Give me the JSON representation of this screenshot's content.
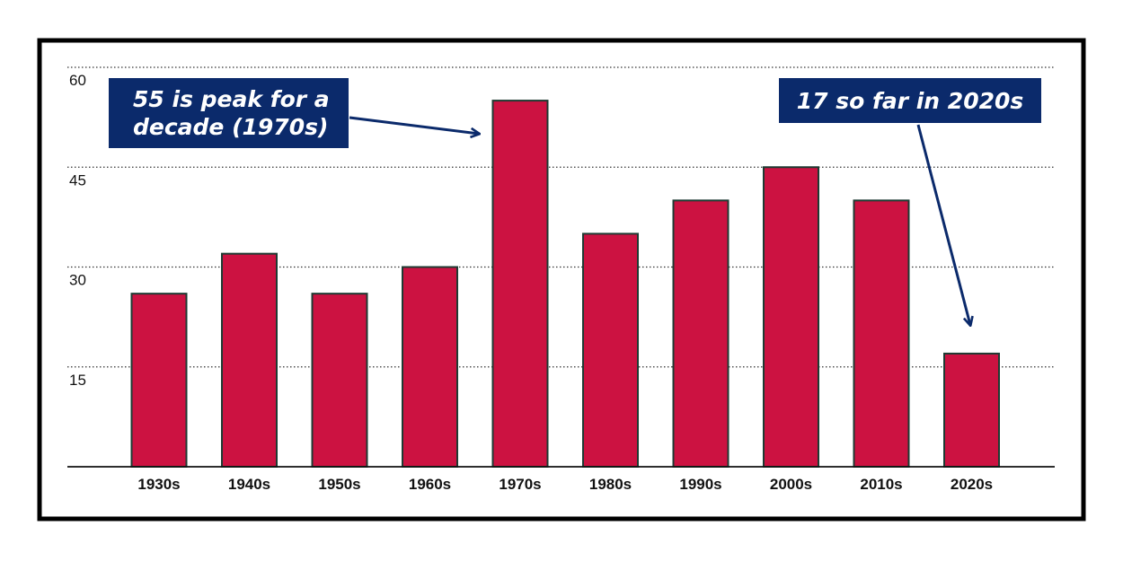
{
  "chart_data": {
    "type": "bar",
    "title": "",
    "xlabel": "",
    "ylabel": "",
    "categories": [
      "1930s",
      "1940s",
      "1950s",
      "1960s",
      "1970s",
      "1980s",
      "1990s",
      "2000s",
      "2010s",
      "2020s"
    ],
    "values": [
      26,
      32,
      26,
      30,
      55,
      35,
      40,
      45,
      40,
      17
    ],
    "ylim": [
      0,
      60
    ],
    "yticks": [
      15,
      30,
      45,
      60
    ],
    "grid": true,
    "legend": "none",
    "colors": {
      "bar": "#cc1241",
      "bar_edge": "#1e3a32",
      "annotation_box": "#0b2a6b",
      "arrow": "#0b2a6b",
      "frame": "#000000"
    },
    "annotations": [
      {
        "lines": [
          "55 is peak for a",
          "decade (1970s)"
        ],
        "target_category": "1970s"
      },
      {
        "lines": [
          "17 so far in 2020s"
        ],
        "target_category": "2020s"
      }
    ]
  }
}
